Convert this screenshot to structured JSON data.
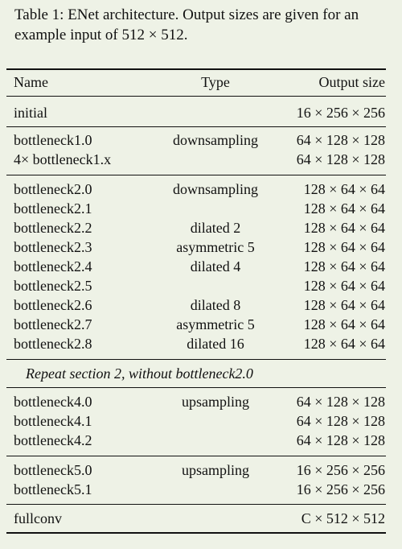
{
  "caption": "Table 1: ENet architecture. Output sizes are given for an example input of 512 × 512.",
  "headers": {
    "name": "Name",
    "type": "Type",
    "output": "Output size"
  },
  "sections": [
    {
      "rows": [
        {
          "name": "initial",
          "type": "",
          "output": "16 × 256 × 256"
        }
      ]
    },
    {
      "rows": [
        {
          "name": "bottleneck1.0",
          "type": "downsampling",
          "output": "64 × 128 × 128"
        },
        {
          "name": "4× bottleneck1.x",
          "type": "",
          "output": "64 × 128 × 128"
        }
      ]
    },
    {
      "rows": [
        {
          "name": "bottleneck2.0",
          "type": "downsampling",
          "output": "128 × 64 × 64"
        },
        {
          "name": "bottleneck2.1",
          "type": "",
          "output": "128 × 64 × 64"
        },
        {
          "name": "bottleneck2.2",
          "type": "dilated 2",
          "output": "128 × 64 × 64"
        },
        {
          "name": "bottleneck2.3",
          "type": "asymmetric 5",
          "output": "128 × 64 × 64"
        },
        {
          "name": "bottleneck2.4",
          "type": "dilated 4",
          "output": "128 × 64 × 64"
        },
        {
          "name": "bottleneck2.5",
          "type": "",
          "output": "128 × 64 × 64"
        },
        {
          "name": "bottleneck2.6",
          "type": "dilated 8",
          "output": "128 × 64 × 64"
        },
        {
          "name": "bottleneck2.7",
          "type": "asymmetric 5",
          "output": "128 × 64 × 64"
        },
        {
          "name": "bottleneck2.8",
          "type": "dilated 16",
          "output": "128 × 64 × 64"
        }
      ]
    }
  ],
  "repeat_note": "Repeat section 2, without bottleneck2.0",
  "sections_after": [
    {
      "rows": [
        {
          "name": "bottleneck4.0",
          "type": "upsampling",
          "output": "64 × 128 × 128"
        },
        {
          "name": "bottleneck4.1",
          "type": "",
          "output": "64 × 128 × 128"
        },
        {
          "name": "bottleneck4.2",
          "type": "",
          "output": "64 × 128 × 128"
        }
      ]
    },
    {
      "rows": [
        {
          "name": "bottleneck5.0",
          "type": "upsampling",
          "output": "16 × 256 × 256"
        },
        {
          "name": "bottleneck5.1",
          "type": "",
          "output": "16 × 256 × 256"
        }
      ]
    },
    {
      "rows": [
        {
          "name": "fullconv",
          "type": "",
          "output": "C × 512 × 512"
        }
      ]
    }
  ]
}
